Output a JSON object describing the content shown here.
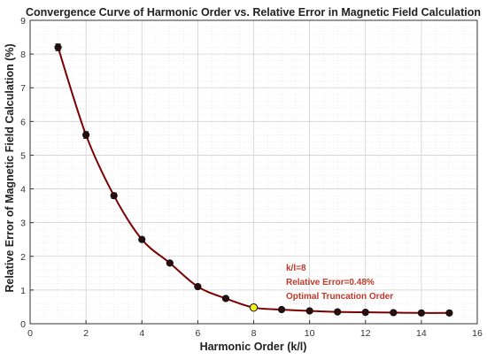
{
  "chart_data": {
    "type": "line",
    "title": "Convergence Curve of Harmonic Order vs. Relative Error in Magnetic Field Calculation",
    "xlabel": "Harmonic Order (k/l)",
    "ylabel": "Relative Error of Magnetic Field Calculation (%)",
    "xlim": [
      0,
      16
    ],
    "ylim": [
      0,
      9
    ],
    "xticks": [
      0,
      2,
      4,
      6,
      8,
      10,
      12,
      14,
      16
    ],
    "yticks": [
      0,
      1,
      2,
      3,
      4,
      5,
      6,
      7,
      8,
      9
    ],
    "grid": true,
    "minor_grid": true,
    "series": [
      {
        "x": [
          1,
          2,
          3,
          4,
          5,
          6,
          7,
          8,
          9,
          10,
          11,
          12,
          13,
          14,
          15
        ],
        "values": [
          8.2,
          5.6,
          3.8,
          2.5,
          1.8,
          1.1,
          0.75,
          0.48,
          0.42,
          0.38,
          0.35,
          0.34,
          0.33,
          0.32,
          0.32
        ],
        "error": [
          0.1,
          0.1,
          0.08,
          0.06,
          0.05,
          0.04,
          0.03,
          0.02,
          0.02,
          0.02,
          0.02,
          0.02,
          0.02,
          0.02,
          0.02
        ],
        "line_color": "#7a0000",
        "marker_color": "#2b0d0d"
      }
    ],
    "highlight": {
      "x": 8,
      "y": 0.48,
      "marker_color": "#f2ee1a"
    },
    "annotation": {
      "lines": [
        "k/l=8",
        "Relative Error=0.48%",
        "Optimal Truncation Order"
      ],
      "color": "#c0392b"
    }
  }
}
